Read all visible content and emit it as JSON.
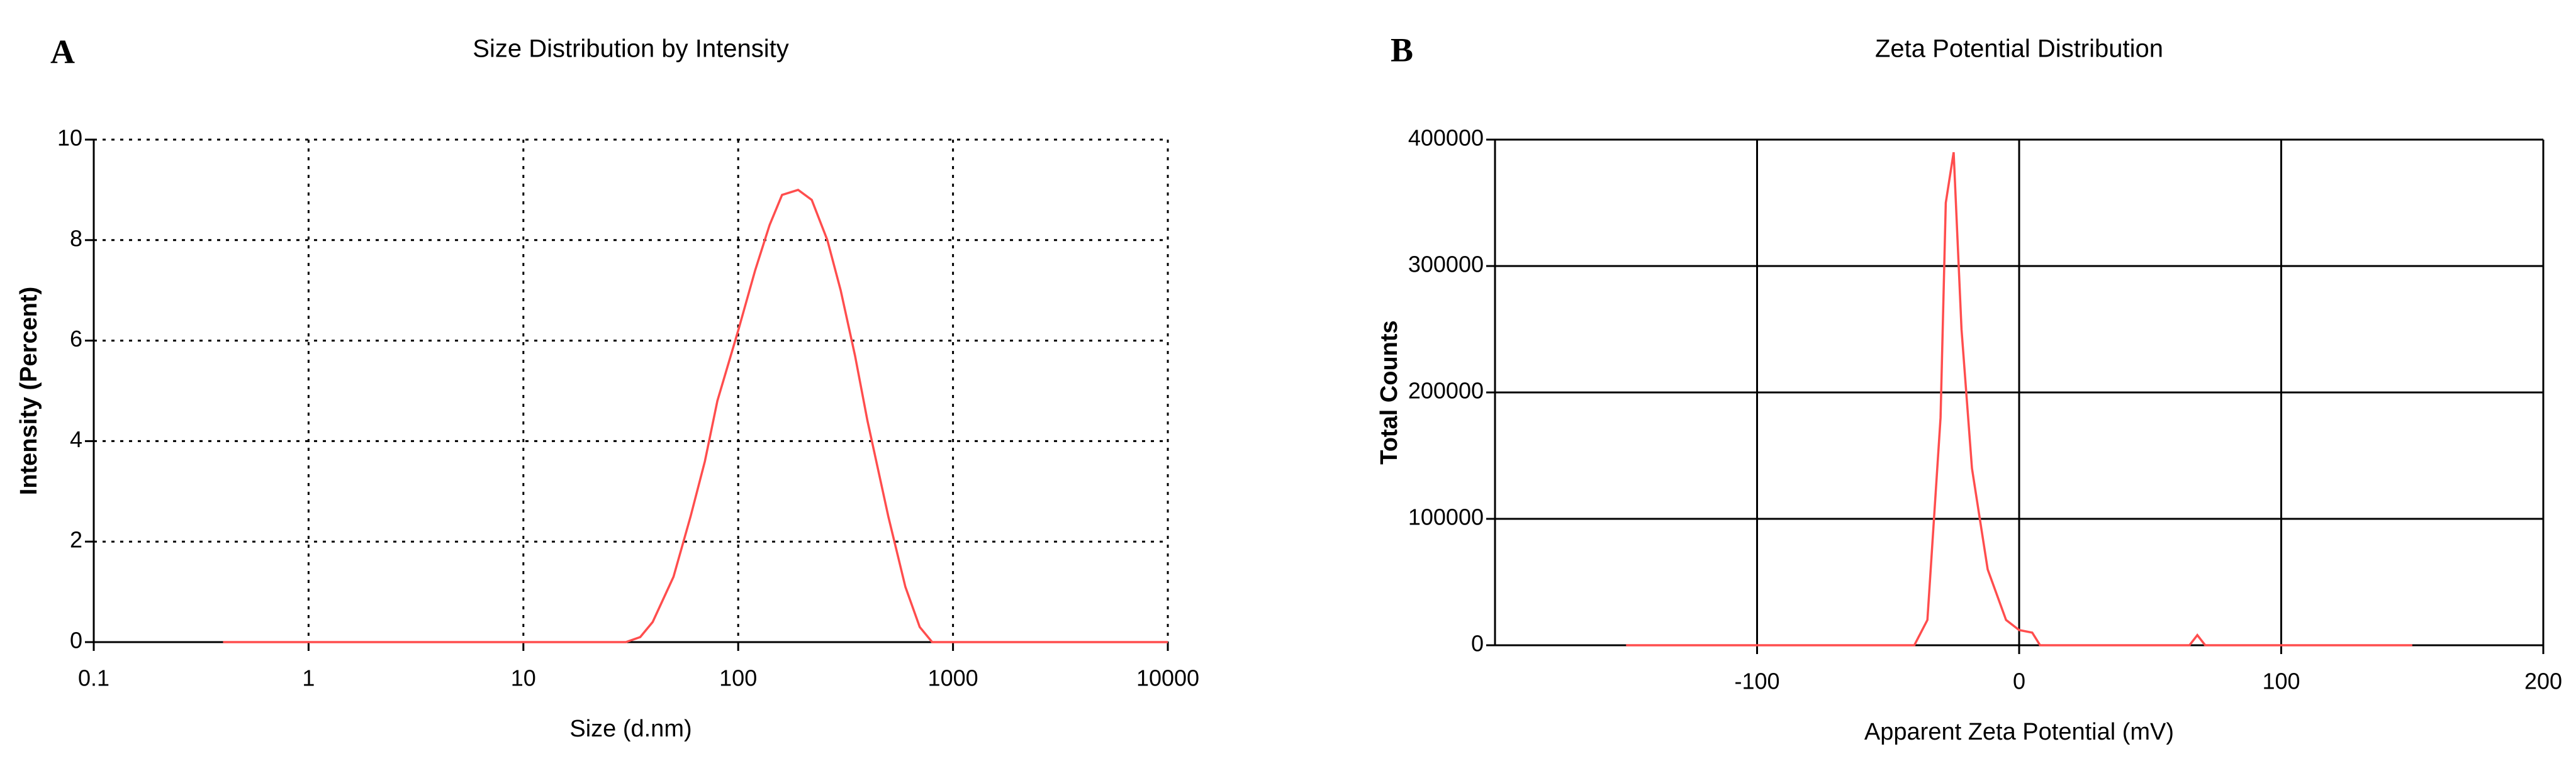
{
  "chart_data": [
    {
      "type": "line",
      "panel": "A",
      "title": "Size Distribution by Intensity",
      "xlabel": "Size (d.nm)",
      "ylabel": "Intensity (Percent)",
      "xscale": "log",
      "xlim": [
        0.1,
        10000
      ],
      "xticks": [
        0.1,
        1,
        10,
        100,
        1000,
        10000
      ],
      "ylim": [
        0,
        10
      ],
      "yticks": [
        0,
        2,
        4,
        6,
        8,
        10
      ],
      "grid": true,
      "grid_style": "dotted",
      "series": [
        {
          "color": "#ff4d4d",
          "x": [
            0.4,
            1,
            10,
            30,
            35,
            40,
            50,
            60,
            70,
            80,
            100,
            120,
            140,
            160,
            190,
            220,
            260,
            300,
            350,
            400,
            500,
            600,
            700,
            800,
            1000,
            10000
          ],
          "values": [
            0,
            0,
            0,
            0,
            0.1,
            0.4,
            1.3,
            2.5,
            3.6,
            4.8,
            6.2,
            7.4,
            8.3,
            8.9,
            9.0,
            8.8,
            8.0,
            7.0,
            5.7,
            4.4,
            2.5,
            1.1,
            0.3,
            0,
            0,
            0
          ]
        }
      ]
    },
    {
      "type": "line",
      "panel": "B",
      "title": "Zeta Potential Distribution",
      "xlabel": "Apparent Zeta Potential (mV)",
      "ylabel": "Total Counts",
      "xscale": "linear",
      "xlim": [
        -200,
        200
      ],
      "xticks": [
        -100,
        0,
        100,
        200
      ],
      "ylim": [
        0,
        400000
      ],
      "yticks": [
        0,
        100000,
        200000,
        300000,
        400000
      ],
      "grid": true,
      "grid_style": "solid",
      "series": [
        {
          "color": "#ff4d4d",
          "x": [
            -150,
            -40,
            -35,
            -30,
            -28,
            -25,
            -22,
            -18,
            -12,
            -5,
            0,
            5,
            8,
            65,
            68,
            71,
            150
          ],
          "values": [
            0,
            0,
            20000,
            180000,
            350000,
            390000,
            250000,
            140000,
            60000,
            20000,
            12000,
            10000,
            0,
            0,
            8000,
            0,
            0
          ]
        }
      ]
    }
  ]
}
